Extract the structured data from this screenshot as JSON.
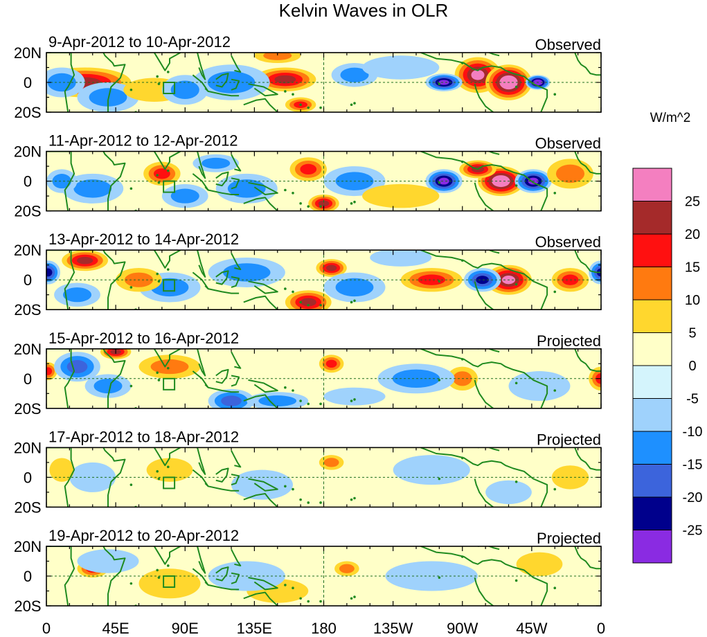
{
  "title": "Kelvin Waves in OLR",
  "panels": [
    {
      "date_range": "9-Apr-2012 to 10-Apr-2012",
      "status": "Observed"
    },
    {
      "date_range": "11-Apr-2012 to 12-Apr-2012",
      "status": "Observed"
    },
    {
      "date_range": "13-Apr-2012 to 14-Apr-2012",
      "status": "Observed"
    },
    {
      "date_range": "15-Apr-2012 to 16-Apr-2012",
      "status": "Projected"
    },
    {
      "date_range": "17-Apr-2012 to 18-Apr-2012",
      "status": "Projected"
    },
    {
      "date_range": "19-Apr-2012 to 20-Apr-2012",
      "status": "Projected"
    }
  ],
  "y_tick_labels": [
    "20N",
    "0",
    "20S"
  ],
  "x_tick_labels": [
    "0",
    "45E",
    "90E",
    "135E",
    "180",
    "135W",
    "90W",
    "45W",
    "0"
  ],
  "colorbar": {
    "units": "W/m^2",
    "labels": [
      "25",
      "20",
      "15",
      "10",
      "5",
      "0",
      "-5",
      "-10",
      "-15",
      "-20",
      "-25"
    ],
    "colors": [
      "#f47fc0",
      "#a52a2a",
      "#ff1010",
      "#ff7a10",
      "#ffd72e",
      "#ffffc8",
      "#d4f4fc",
      "#9fd2fc",
      "#1e90ff",
      "#3c64dc",
      "#00008c",
      "#8a2be2"
    ]
  },
  "blob_palette": {
    "pos": [
      "#ffffc8",
      "#ffd72e",
      "#ff7a10",
      "#ff1010",
      "#a52a2a",
      "#f47fc0"
    ],
    "neg": [
      "#d4f4fc",
      "#9fd2fc",
      "#1e90ff",
      "#3c64dc",
      "#00008c",
      "#8a2be2"
    ]
  },
  "panel_anomalies": [
    [
      [
        25,
        0,
        30,
        10,
        4
      ],
      [
        155,
        2,
        20,
        8,
        4
      ],
      [
        165,
        -15,
        10,
        5,
        3
      ],
      [
        280,
        5,
        15,
        12,
        5
      ],
      [
        300,
        0,
        15,
        12,
        6
      ],
      [
        258,
        0,
        12,
        6,
        -5
      ],
      [
        319,
        0,
        8,
        5,
        -6
      ],
      [
        120,
        0,
        25,
        12,
        -2
      ],
      [
        40,
        -10,
        20,
        10,
        -2
      ],
      [
        200,
        5,
        15,
        8,
        -2
      ],
      [
        230,
        10,
        25,
        8,
        -1
      ],
      [
        10,
        0,
        15,
        10,
        -2
      ],
      [
        70,
        -5,
        20,
        8,
        1
      ],
      [
        150,
        18,
        15,
        5,
        2
      ],
      [
        90,
        -5,
        15,
        10,
        -2
      ]
    ],
    [
      [
        180,
        -15,
        10,
        6,
        4
      ],
      [
        170,
        8,
        12,
        8,
        3
      ],
      [
        75,
        5,
        12,
        8,
        3
      ],
      [
        295,
        0,
        15,
        10,
        6
      ],
      [
        280,
        8,
        12,
        6,
        4
      ],
      [
        258,
        0,
        12,
        8,
        -5
      ],
      [
        316,
        0,
        12,
        8,
        -5
      ],
      [
        30,
        -5,
        20,
        10,
        -2
      ],
      [
        130,
        -5,
        20,
        10,
        -2
      ],
      [
        200,
        0,
        20,
        10,
        -2
      ],
      [
        110,
        12,
        15,
        6,
        -2
      ],
      [
        340,
        5,
        15,
        10,
        2
      ],
      [
        10,
        0,
        10,
        8,
        -2
      ],
      [
        230,
        -10,
        25,
        8,
        1
      ],
      [
        90,
        -10,
        15,
        8,
        -2
      ]
    ],
    [
      [
        25,
        13,
        15,
        7,
        4
      ],
      [
        170,
        -15,
        15,
        8,
        4
      ],
      [
        185,
        8,
        10,
        6,
        4
      ],
      [
        250,
        0,
        20,
        8,
        3
      ],
      [
        300,
        0,
        15,
        10,
        5
      ],
      [
        340,
        0,
        12,
        8,
        3
      ],
      [
        283,
        0,
        12,
        8,
        -4
      ],
      [
        360,
        5,
        8,
        8,
        -4
      ],
      [
        1,
        5,
        8,
        8,
        -4
      ],
      [
        130,
        5,
        25,
        10,
        -2
      ],
      [
        80,
        -5,
        20,
        10,
        -2
      ],
      [
        200,
        -5,
        20,
        10,
        -2
      ],
      [
        60,
        0,
        15,
        8,
        2
      ],
      [
        20,
        -10,
        15,
        8,
        -2
      ],
      [
        230,
        15,
        20,
        6,
        -1
      ]
    ],
    [
      [
        45,
        18,
        10,
        5,
        4
      ],
      [
        1,
        5,
        6,
        6,
        3
      ],
      [
        360,
        0,
        8,
        8,
        3
      ],
      [
        185,
        10,
        8,
        6,
        3
      ],
      [
        270,
        0,
        10,
        8,
        2
      ],
      [
        120,
        -15,
        15,
        8,
        -3
      ],
      [
        240,
        0,
        25,
        10,
        -2
      ],
      [
        20,
        8,
        15,
        10,
        -3
      ],
      [
        150,
        -15,
        20,
        6,
        -2
      ],
      [
        40,
        -5,
        15,
        8,
        -2
      ],
      [
        80,
        8,
        20,
        8,
        2
      ],
      [
        320,
        -5,
        20,
        10,
        -1
      ],
      [
        200,
        -12,
        20,
        6,
        -1
      ]
    ],
    [
      [
        185,
        10,
        8,
        5,
        2
      ],
      [
        340,
        0,
        12,
        8,
        1
      ],
      [
        80,
        5,
        15,
        8,
        1
      ],
      [
        30,
        0,
        15,
        10,
        -1
      ],
      [
        140,
        -5,
        20,
        10,
        -1
      ],
      [
        250,
        5,
        25,
        10,
        -1
      ],
      [
        300,
        -10,
        15,
        8,
        -1
      ],
      [
        10,
        5,
        8,
        8,
        1
      ]
    ],
    [
      [
        30,
        5,
        10,
        6,
        3
      ],
      [
        195,
        5,
        8,
        5,
        2
      ],
      [
        80,
        -5,
        20,
        10,
        1
      ],
      [
        150,
        -10,
        20,
        8,
        1
      ],
      [
        40,
        10,
        20,
        8,
        -1
      ],
      [
        130,
        0,
        25,
        10,
        -1
      ],
      [
        250,
        0,
        30,
        10,
        -1
      ],
      [
        320,
        8,
        15,
        8,
        1
      ]
    ]
  ]
}
